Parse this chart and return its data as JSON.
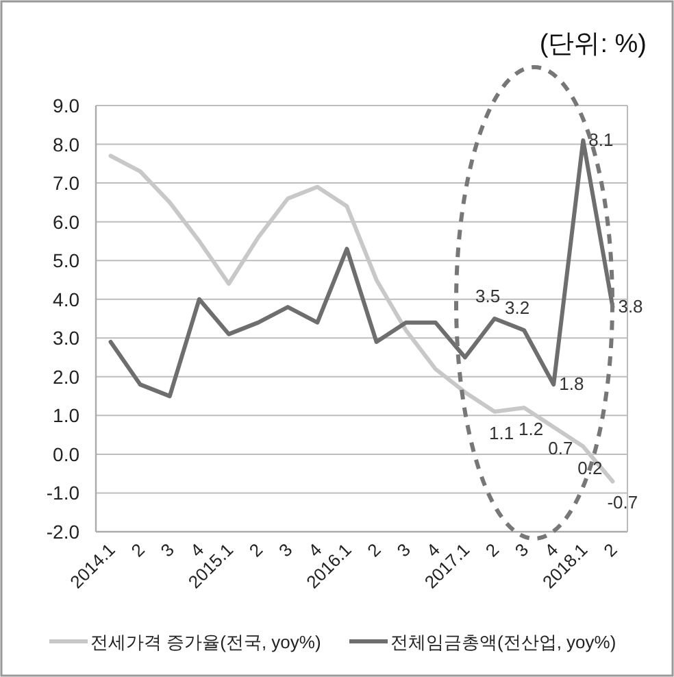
{
  "chart_data": {
    "type": "line",
    "annotations": [
      "(단위: %)"
    ],
    "categories": [
      "2014.1",
      "2",
      "3",
      "4",
      "2015.1",
      "2",
      "3",
      "4",
      "2016.1",
      "2",
      "3",
      "4",
      "2017.1",
      "2",
      "3",
      "4",
      "2018.1",
      "2"
    ],
    "series": [
      {
        "name": "전세가격 증가율(전국, yoy%)",
        "color": "#c8c8c8",
        "values": [
          7.7,
          7.3,
          6.5,
          5.5,
          4.4,
          5.6,
          6.6,
          6.9,
          6.4,
          4.5,
          3.2,
          2.2,
          1.6,
          1.1,
          1.2,
          0.7,
          0.2,
          -0.7
        ],
        "value_labels": [
          null,
          null,
          null,
          null,
          null,
          null,
          null,
          null,
          null,
          null,
          null,
          null,
          null,
          "1.1",
          "1.2",
          "0.7",
          "0.2",
          "-0.7"
        ]
      },
      {
        "name": "전체임금총액(전산업, yoy%)",
        "color": "#6e6e6e",
        "values": [
          2.9,
          1.8,
          1.5,
          4.0,
          3.1,
          3.4,
          3.8,
          3.4,
          5.3,
          2.9,
          3.4,
          3.4,
          2.5,
          3.5,
          3.2,
          1.8,
          8.1,
          3.8
        ],
        "value_labels": [
          null,
          null,
          null,
          null,
          null,
          null,
          null,
          null,
          null,
          null,
          null,
          null,
          null,
          "3.5",
          "3.2",
          "1.8",
          "8.1",
          "3.8"
        ]
      }
    ],
    "ylim": [
      -2,
      9
    ],
    "yticks": [
      {
        "value": -2,
        "label": "-2.0"
      },
      {
        "value": -1,
        "label": "-1.0"
      },
      {
        "value": 0,
        "label": "0.0"
      },
      {
        "value": 1,
        "label": "1.0"
      },
      {
        "value": 2,
        "label": "2.0"
      },
      {
        "value": 3,
        "label": "3.0"
      },
      {
        "value": 4,
        "label": "4.0"
      },
      {
        "value": 5,
        "label": "5.0"
      },
      {
        "value": 6,
        "label": "6.0"
      },
      {
        "value": 7,
        "label": "7.0"
      },
      {
        "value": 8,
        "label": "8.0"
      },
      {
        "value": 9,
        "label": "9.0"
      }
    ],
    "grid": "y",
    "legend": "bottom",
    "marker": "none",
    "line_style": "solid"
  }
}
